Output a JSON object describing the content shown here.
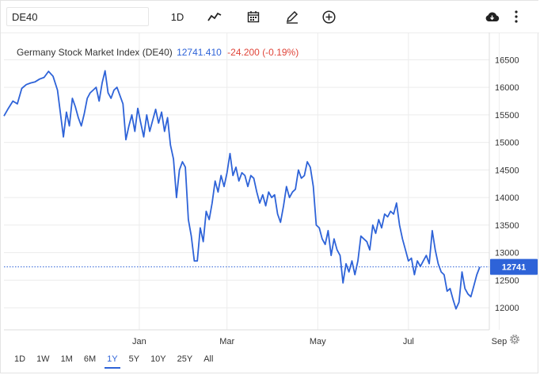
{
  "toolbar": {
    "symbol_value": "DE40",
    "interval_label": "1D"
  },
  "icons": [
    "line-chart-icon",
    "calendar-icon",
    "pencil-icon",
    "plus-circle-icon",
    "cloud-download-icon",
    "more-vertical-icon",
    "gear-icon"
  ],
  "colors": {
    "accent": "#2e63d8",
    "negative": "#e0453a",
    "line": "#2e63d8"
  },
  "header": {
    "name": "Germany Stock Market Index (DE40)",
    "price": "12741.410",
    "change": "-24.200 (-0.19%)"
  },
  "periods": [
    "1D",
    "1W",
    "1M",
    "6M",
    "1Y",
    "5Y",
    "10Y",
    "25Y",
    "All"
  ],
  "active_period": "1Y",
  "chart_data": {
    "type": "line",
    "title": "Germany Stock Market Index (DE40)",
    "xlabel": "",
    "ylabel": "",
    "ylim": [
      11700,
      16700
    ],
    "y_ticks": [
      12000,
      12500,
      13000,
      13500,
      14000,
      14500,
      15000,
      15500,
      16000,
      16500
    ],
    "x_tick_labels": [
      "Jan",
      "Mar",
      "May",
      "Jul",
      "Sep"
    ],
    "x_tick_positions": [
      91,
      150,
      211,
      272,
      333
    ],
    "current_value_label": "12741",
    "current_value": 12741,
    "grid": true,
    "series": [
      {
        "points": [
          [
            0,
            15480
          ],
          [
            3,
            15620
          ],
          [
            6,
            15750
          ],
          [
            9,
            15700
          ],
          [
            12,
            15980
          ],
          [
            15,
            16050
          ],
          [
            18,
            16080
          ],
          [
            21,
            16100
          ],
          [
            24,
            16150
          ],
          [
            27,
            16180
          ],
          [
            30,
            16290
          ],
          [
            33,
            16200
          ],
          [
            36,
            15950
          ],
          [
            38,
            15520
          ],
          [
            40,
            15100
          ],
          [
            42,
            15550
          ],
          [
            44,
            15300
          ],
          [
            46,
            15800
          ],
          [
            48,
            15650
          ],
          [
            50,
            15450
          ],
          [
            52,
            15300
          ],
          [
            54,
            15520
          ],
          [
            56,
            15800
          ],
          [
            58,
            15900
          ],
          [
            60,
            15950
          ],
          [
            62,
            16000
          ],
          [
            64,
            15750
          ],
          [
            66,
            16080
          ],
          [
            68,
            16300
          ],
          [
            70,
            15900
          ],
          [
            72,
            15800
          ],
          [
            74,
            15950
          ],
          [
            76,
            16000
          ],
          [
            78,
            15850
          ],
          [
            80,
            15700
          ],
          [
            82,
            15050
          ],
          [
            84,
            15300
          ],
          [
            86,
            15500
          ],
          [
            88,
            15200
          ],
          [
            90,
            15620
          ],
          [
            92,
            15350
          ],
          [
            94,
            15100
          ],
          [
            96,
            15500
          ],
          [
            98,
            15200
          ],
          [
            100,
            15400
          ],
          [
            102,
            15600
          ],
          [
            104,
            15350
          ],
          [
            106,
            15550
          ],
          [
            108,
            15200
          ],
          [
            110,
            15450
          ],
          [
            112,
            14950
          ],
          [
            114,
            14700
          ],
          [
            116,
            14000
          ],
          [
            118,
            14500
          ],
          [
            120,
            14650
          ],
          [
            122,
            14550
          ],
          [
            124,
            13600
          ],
          [
            126,
            13300
          ],
          [
            128,
            12850
          ],
          [
            130,
            12850
          ],
          [
            132,
            13450
          ],
          [
            134,
            13200
          ],
          [
            136,
            13750
          ],
          [
            138,
            13600
          ],
          [
            140,
            13900
          ],
          [
            142,
            14300
          ],
          [
            144,
            14100
          ],
          [
            146,
            14400
          ],
          [
            148,
            14200
          ],
          [
            150,
            14450
          ],
          [
            152,
            14800
          ],
          [
            154,
            14400
          ],
          [
            156,
            14550
          ],
          [
            158,
            14300
          ],
          [
            160,
            14450
          ],
          [
            162,
            14400
          ],
          [
            164,
            14200
          ],
          [
            166,
            14400
          ],
          [
            168,
            14350
          ],
          [
            170,
            14100
          ],
          [
            172,
            13900
          ],
          [
            174,
            14050
          ],
          [
            176,
            13850
          ],
          [
            178,
            14100
          ],
          [
            180,
            14000
          ],
          [
            182,
            14050
          ],
          [
            184,
            13700
          ],
          [
            186,
            13550
          ],
          [
            188,
            13850
          ],
          [
            190,
            14200
          ],
          [
            192,
            14000
          ],
          [
            194,
            14100
          ],
          [
            196,
            14150
          ],
          [
            198,
            14500
          ],
          [
            200,
            14350
          ],
          [
            202,
            14400
          ],
          [
            204,
            14650
          ],
          [
            206,
            14550
          ],
          [
            208,
            14200
          ],
          [
            210,
            13500
          ],
          [
            212,
            13450
          ],
          [
            214,
            13250
          ],
          [
            216,
            13150
          ],
          [
            218,
            13400
          ],
          [
            220,
            12950
          ],
          [
            222,
            13250
          ],
          [
            224,
            13050
          ],
          [
            226,
            12950
          ],
          [
            228,
            12450
          ],
          [
            230,
            12800
          ],
          [
            232,
            12650
          ],
          [
            234,
            12850
          ],
          [
            236,
            12600
          ],
          [
            238,
            12850
          ],
          [
            240,
            13300
          ],
          [
            242,
            13250
          ],
          [
            244,
            13200
          ],
          [
            246,
            13050
          ],
          [
            248,
            13500
          ],
          [
            250,
            13350
          ],
          [
            252,
            13600
          ],
          [
            254,
            13450
          ],
          [
            256,
            13700
          ],
          [
            258,
            13650
          ],
          [
            260,
            13750
          ],
          [
            262,
            13700
          ],
          [
            264,
            13900
          ],
          [
            266,
            13500
          ],
          [
            268,
            13250
          ],
          [
            270,
            13050
          ],
          [
            272,
            12850
          ],
          [
            274,
            12900
          ],
          [
            276,
            12600
          ],
          [
            278,
            12850
          ],
          [
            280,
            12750
          ],
          [
            282,
            12850
          ],
          [
            284,
            12950
          ],
          [
            286,
            12800
          ],
          [
            288,
            13400
          ],
          [
            290,
            13050
          ],
          [
            292,
            12800
          ],
          [
            294,
            12650
          ],
          [
            296,
            12600
          ],
          [
            298,
            12300
          ],
          [
            300,
            12350
          ],
          [
            302,
            12150
          ],
          [
            304,
            11980
          ],
          [
            306,
            12100
          ],
          [
            308,
            12650
          ],
          [
            310,
            12350
          ],
          [
            312,
            12250
          ],
          [
            314,
            12200
          ],
          [
            316,
            12400
          ],
          [
            318,
            12600
          ],
          [
            320,
            12741
          ]
        ]
      }
    ]
  }
}
